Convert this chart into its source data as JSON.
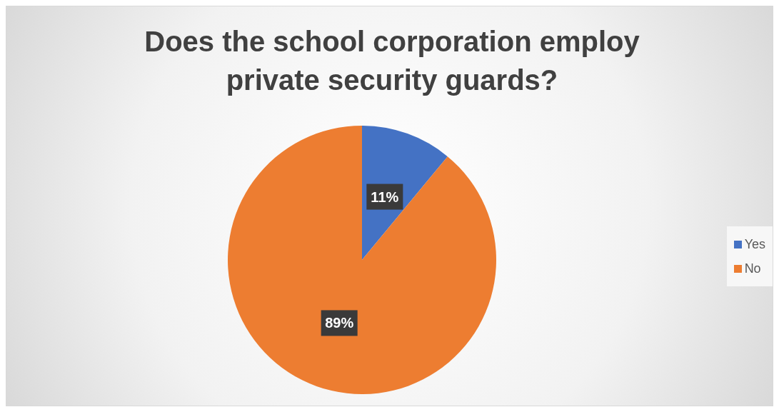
{
  "chart_data": {
    "type": "pie",
    "title": "Does the school corporation employ private security guards?",
    "categories": [
      "Yes",
      "No"
    ],
    "values": [
      11,
      89
    ],
    "colors": [
      "#4472c4",
      "#ed7d31"
    ],
    "value_labels": [
      "11%",
      "89%"
    ],
    "legend": "right"
  }
}
